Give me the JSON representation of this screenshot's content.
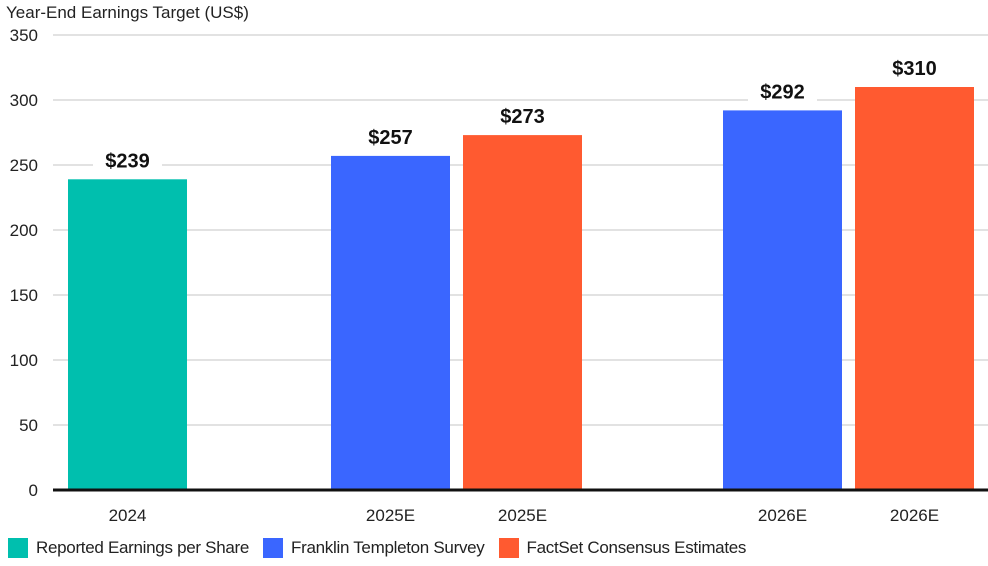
{
  "chart_data": {
    "type": "bar",
    "title": "Year-End Earnings Target (US$)",
    "xlabel": "",
    "ylabel": "Year-End Earnings Target (US$)",
    "ylim": [
      0,
      350
    ],
    "yticks": [
      0,
      50,
      100,
      150,
      200,
      250,
      300,
      350
    ],
    "grid": true,
    "legend_position": "bottom-left",
    "bars": [
      {
        "category": "2024",
        "series": "Reported Earnings per Share",
        "value": 239,
        "label": "$239"
      },
      {
        "category": "2025E",
        "series": "Franklin Templeton Survey",
        "value": 257,
        "label": "$257"
      },
      {
        "category": "2025E",
        "series": "FactSet Consensus Estimates",
        "value": 273,
        "label": "$273"
      },
      {
        "category": "2026E",
        "series": "Franklin Templeton Survey",
        "value": 292,
        "label": "$292"
      },
      {
        "category": "2026E",
        "series": "FactSet Consensus Estimates",
        "value": 310,
        "label": "$310"
      }
    ],
    "series": [
      {
        "name": "Reported Earnings per Share",
        "color": "#00bfae"
      },
      {
        "name": "Franklin Templeton Survey",
        "color": "#3a66ff"
      },
      {
        "name": "FactSet Consensus Estimates",
        "color": "#ff5a30"
      }
    ]
  }
}
